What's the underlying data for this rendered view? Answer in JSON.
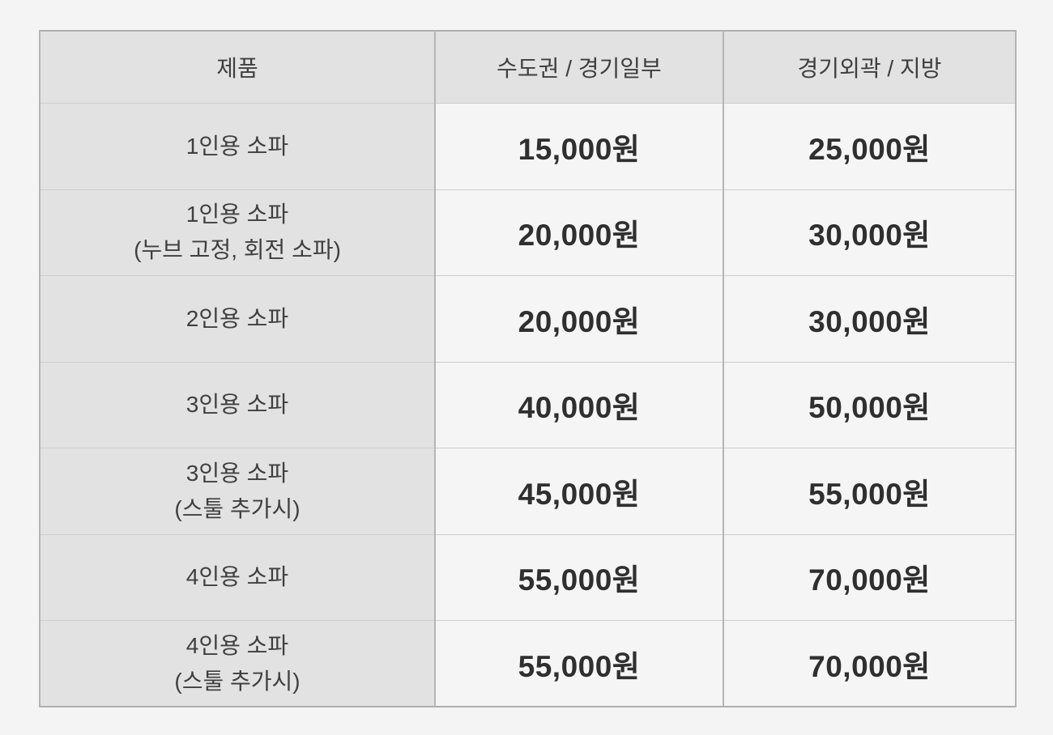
{
  "table": {
    "columns": [
      {
        "label": "제품"
      },
      {
        "label": "수도권 / 경기일부"
      },
      {
        "label": "경기외곽 / 지방"
      }
    ],
    "rows": [
      {
        "product": "1인용 소파",
        "note": "",
        "metro": "15,000원",
        "region": "25,000원"
      },
      {
        "product": "1인용 소파",
        "note": "(누브 고정, 회전 소파)",
        "metro": "20,000원",
        "region": "30,000원"
      },
      {
        "product": "2인용 소파",
        "note": "",
        "metro": "20,000원",
        "region": "30,000원"
      },
      {
        "product": "3인용 소파",
        "note": "",
        "metro": "40,000원",
        "region": "50,000원"
      },
      {
        "product": "3인용 소파",
        "note": "(스툴 추가시)",
        "metro": "45,000원",
        "region": "55,000원"
      },
      {
        "product": "4인용 소파",
        "note": "",
        "metro": "55,000원",
        "region": "70,000원"
      },
      {
        "product": "4인용 소파",
        "note": "(스툴 추가시)",
        "metro": "55,000원",
        "region": "70,000원"
      }
    ],
    "colors": {
      "page_bg": "#f4f4f4",
      "header_bg": "#e2e2e2",
      "label_col_bg": "#e2e2e2",
      "value_cell_bg": "#f5f5f5",
      "outer_border": "#aeaeae",
      "inner_border_v": "#b5b5b5",
      "inner_border_h": "#cdcdcd",
      "label_text": "#3f3f3f",
      "price_text": "#2f2f2f"
    }
  }
}
